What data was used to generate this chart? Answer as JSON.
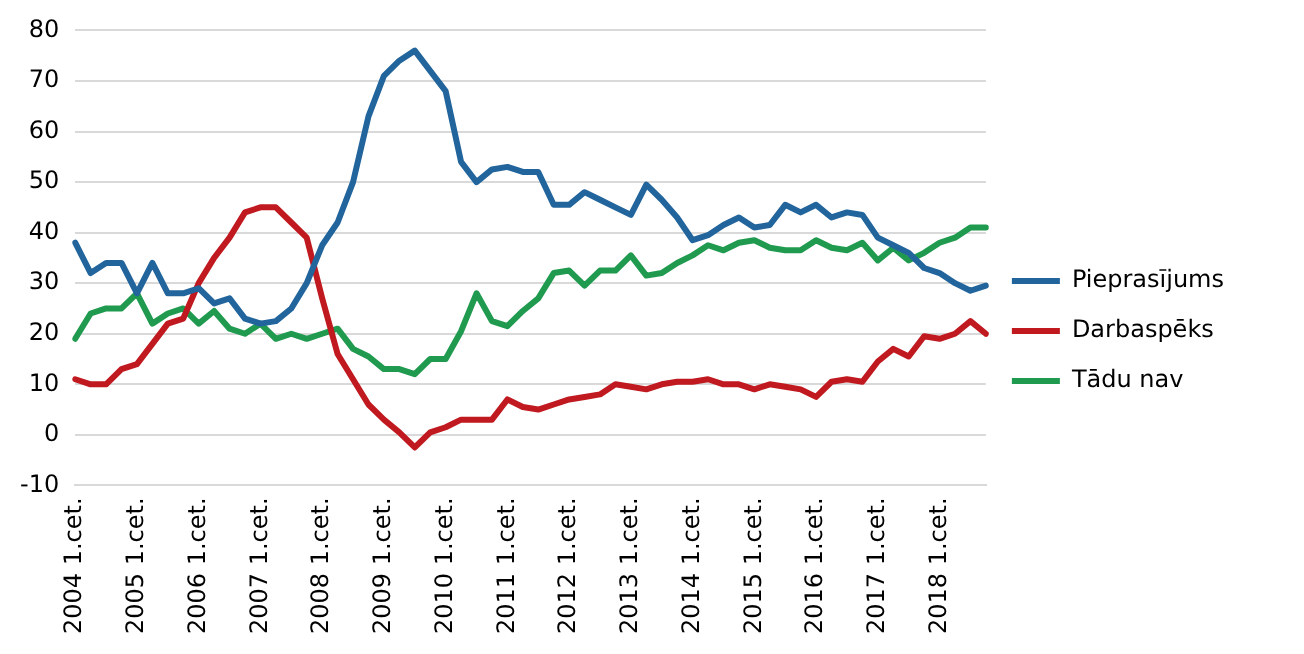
{
  "chart_data": {
    "type": "line",
    "categories": [
      "2004 1.cet.",
      null,
      null,
      null,
      "2005 1.cet.",
      null,
      null,
      null,
      "2006 1.cet.",
      null,
      null,
      null,
      "2007 1.cet.",
      null,
      null,
      null,
      "2008 1.cet.",
      null,
      null,
      null,
      "2009 1.cet.",
      null,
      null,
      null,
      "2010 1.cet.",
      null,
      null,
      null,
      "2011 1.cet.",
      null,
      null,
      null,
      "2012 1.cet.",
      null,
      null,
      null,
      "2013 1.cet.",
      null,
      null,
      null,
      "2014 1.cet.",
      null,
      null,
      null,
      "2015 1.cet.",
      null,
      null,
      null,
      "2016 1.cet.",
      null,
      null,
      null,
      "2017 1.cet.",
      null,
      null,
      null,
      "2018 1.cet.",
      null,
      null,
      null
    ],
    "series": [
      {
        "name": "Pieprasījums",
        "color": "#22649c",
        "values": [
          38,
          32,
          34,
          34,
          28,
          34,
          28,
          28,
          29,
          26,
          27,
          23,
          22,
          22.5,
          25,
          30,
          37.5,
          42,
          50,
          63,
          71,
          74,
          76,
          72,
          68,
          54,
          50,
          52.5,
          53,
          52,
          52,
          45.5,
          45.5,
          48,
          46.5,
          45,
          43.5,
          49.5,
          46.5,
          43,
          38.5,
          39.5,
          41.5,
          43,
          41,
          41.5,
          45.5,
          44,
          45.5,
          43,
          44,
          43.5,
          39,
          37.5,
          36,
          33,
          32,
          30,
          28.5,
          29.5
        ]
      },
      {
        "name": "Darbaspēks",
        "color": "#c0191f",
        "values": [
          11,
          10,
          10,
          13,
          14,
          18,
          22,
          23,
          30,
          35,
          39,
          44,
          45,
          45,
          42,
          39,
          27,
          16,
          11,
          6,
          3,
          0.5,
          -2.5,
          0.5,
          1.5,
          3,
          3,
          3,
          7,
          5.5,
          5,
          6,
          7,
          7.5,
          8,
          10,
          9.5,
          9,
          10,
          10.5,
          10.5,
          11,
          10,
          10,
          9,
          10,
          9.5,
          9,
          7.5,
          10.5,
          11,
          10.5,
          14.5,
          17,
          15.5,
          19.5,
          19,
          20,
          22.5,
          20
        ]
      },
      {
        "name": "Tādu nav",
        "color": "#1f9a4f",
        "values": [
          19,
          24,
          25,
          25,
          28,
          22,
          24,
          25,
          22,
          24.5,
          21,
          20,
          22,
          19,
          20,
          19,
          20,
          21,
          17,
          15.5,
          13,
          13,
          12,
          15,
          15,
          20.5,
          28,
          22.5,
          21.5,
          24.5,
          27,
          32,
          32.5,
          29.5,
          32.5,
          32.5,
          35.5,
          31.5,
          32,
          34,
          35.5,
          37.5,
          36.5,
          38,
          38.5,
          37,
          36.5,
          36.5,
          38.5,
          37,
          36.5,
          38,
          34.5,
          37,
          34.5,
          36,
          38,
          39,
          41,
          41
        ]
      }
    ],
    "ylim": [
      -10,
      80
    ],
    "yticks": [
      -10,
      0,
      10,
      20,
      30,
      40,
      50,
      60,
      70,
      80
    ],
    "grid": "y",
    "legend": "right",
    "marker": "none",
    "line_style": "solid"
  }
}
